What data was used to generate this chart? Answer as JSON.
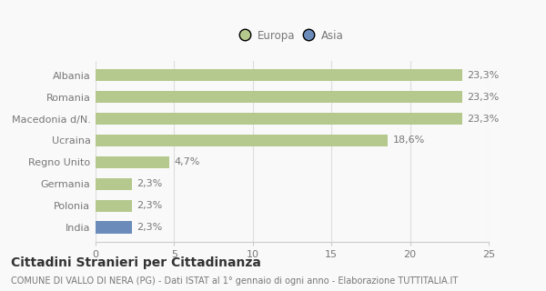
{
  "categories": [
    "India",
    "Polonia",
    "Germania",
    "Regno Unito",
    "Ucraina",
    "Macedonia d/N.",
    "Romania",
    "Albania"
  ],
  "values": [
    2.3,
    2.3,
    2.3,
    4.7,
    18.6,
    23.3,
    23.3,
    23.3
  ],
  "colors": [
    "#6b8cba",
    "#b5c98e",
    "#b5c98e",
    "#b5c98e",
    "#b5c98e",
    "#b5c98e",
    "#b5c98e",
    "#b5c98e"
  ],
  "labels": [
    "2,3%",
    "2,3%",
    "2,3%",
    "4,7%",
    "18,6%",
    "23,3%",
    "23,3%",
    "23,3%"
  ],
  "xlim": [
    0,
    25
  ],
  "xticks": [
    0,
    5,
    10,
    15,
    20,
    25
  ],
  "legend": [
    {
      "label": "Europa",
      "color": "#b5c98e"
    },
    {
      "label": "Asia",
      "color": "#6b8cba"
    }
  ],
  "title": "Cittadini Stranieri per Cittadinanza",
  "subtitle": "COMUNE DI VALLO DI NERA (PG) - Dati ISTAT al 1° gennaio di ogni anno - Elaborazione TUTTITALIA.IT",
  "bg_color": "#f9f9f9",
  "bar_height": 0.55,
  "label_fontsize": 8,
  "tick_fontsize": 8,
  "title_fontsize": 10,
  "subtitle_fontsize": 7
}
